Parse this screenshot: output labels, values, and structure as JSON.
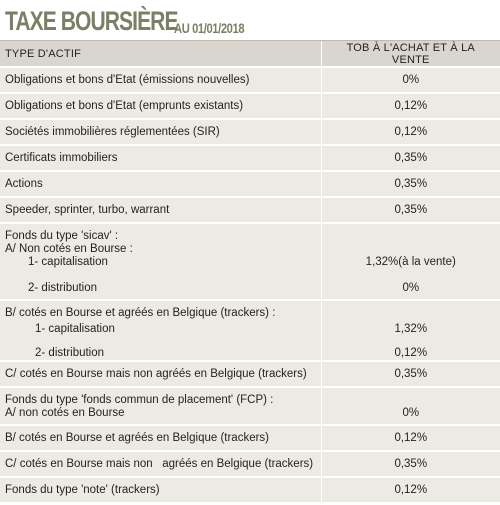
{
  "title": {
    "main": "TAXE BOURSIÈRE",
    "sub": "AU 01/01/2018"
  },
  "table": {
    "headers": [
      "TYPE D'ACTIF",
      "TOB À L'ACHAT ET À LA VENTE"
    ],
    "rows": [
      {
        "label": "Obligations et bons d'Etat (émissions nouvelles)",
        "value": "0%"
      },
      {
        "label": "Obligations et bons d'Etat (emprunts existants)",
        "value": "0,12%"
      },
      {
        "label": "Sociétés immobilières réglementées (SIR)",
        "value": "0,12%"
      },
      {
        "label": "Certificats immobiliers",
        "value": "0,35%"
      },
      {
        "label": "Actions",
        "value": "0,35%"
      },
      {
        "label": "Speeder, sprinter, turbo, warrant",
        "value": "0,35%"
      }
    ],
    "sicav": {
      "title": "Fonds du type 'sicav' :",
      "a_label": "A/ Non cotés en Bourse :",
      "a1_label": "1- capitalisation",
      "a1_value": "1,32%(à la vente)",
      "a2_label": "2- distribution",
      "a2_value": "0%",
      "b_label": "B/ cotés en Bourse et agréés  en Belgique (trackers) :",
      "b1_label": "1-  capitalisation",
      "b1_value": "1,32%",
      "b2_label": "2-  distribution",
      "b2_value": "0,12%",
      "c_label": "C/ cotés en Bourse mais non agréés en Belgique (trackers)",
      "c_value": "0,35%"
    },
    "fcp": {
      "title": "Fonds du type 'fonds commun de placement' (FCP) :",
      "a_label": "A/ non cotés en Bourse",
      "a_value": "0%",
      "b_label": "B/ cotés en Bourse et agréés  en Belgique (trackers)",
      "b_value": "0,12%",
      "c_label": "C/ cotés en Bourse mais non   agréés en Belgique (trackers)",
      "c_value": "0,35%"
    },
    "note": {
      "label": "Fonds du type 'note' (trackers)",
      "value": "0,12%"
    }
  },
  "colors": {
    "title": "#7a8064",
    "header_bg": "#d9d6cf",
    "row_bg": "#ede9e3"
  }
}
